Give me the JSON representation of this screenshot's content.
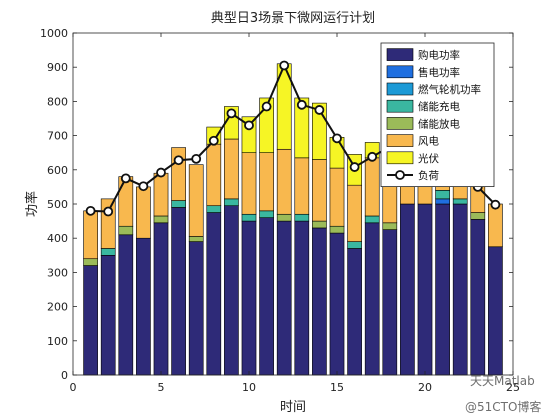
{
  "chart_data": {
    "type": "bar",
    "stacked": true,
    "title": "典型日3场景下微网运行计划",
    "xlabel": "时间",
    "ylabel": "功率",
    "xlim": [
      0,
      25
    ],
    "ylim": [
      0,
      1000
    ],
    "xticks": [
      0,
      5,
      10,
      15,
      20,
      25
    ],
    "yticks": [
      0,
      100,
      200,
      300,
      400,
      500,
      600,
      700,
      800,
      900,
      1000
    ],
    "grid": false,
    "legend_position": "top-right",
    "x": [
      1,
      2,
      3,
      4,
      5,
      6,
      7,
      8,
      9,
      10,
      11,
      12,
      13,
      14,
      15,
      16,
      17,
      18,
      19,
      20,
      21,
      22,
      23,
      24
    ],
    "series": [
      {
        "name": "购电功率",
        "color": "#2e2a78",
        "values": [
          320,
          350,
          410,
          400,
          445,
          490,
          390,
          475,
          495,
          450,
          460,
          450,
          450,
          430,
          415,
          370,
          445,
          425,
          500,
          500,
          500,
          500,
          455,
          375
        ]
      },
      {
        "name": "售电功率",
        "color": "#1f6fe0",
        "values": [
          0,
          0,
          0,
          0,
          0,
          0,
          0,
          0,
          0,
          0,
          0,
          0,
          0,
          0,
          0,
          0,
          0,
          0,
          0,
          0,
          15,
          0,
          0,
          0
        ]
      },
      {
        "name": "燃气轮机功率",
        "color": "#1c9ad6",
        "values": [
          0,
          0,
          0,
          0,
          0,
          0,
          0,
          0,
          0,
          0,
          0,
          0,
          0,
          0,
          0,
          0,
          0,
          0,
          0,
          0,
          0,
          0,
          0,
          0
        ]
      },
      {
        "name": "储能充电",
        "color": "#3ab7a0",
        "values": [
          0,
          20,
          0,
          0,
          0,
          20,
          0,
          20,
          20,
          20,
          20,
          0,
          20,
          0,
          0,
          20,
          20,
          0,
          0,
          0,
          25,
          15,
          0,
          0
        ]
      },
      {
        "name": "储能放电",
        "color": "#9bbb59",
        "values": [
          20,
          0,
          25,
          0,
          20,
          0,
          15,
          0,
          0,
          0,
          0,
          20,
          0,
          20,
          20,
          0,
          0,
          20,
          0,
          0,
          0,
          0,
          20,
          0
        ]
      },
      {
        "name": "风电",
        "color": "#f8b84e",
        "values": [
          140,
          145,
          145,
          150,
          125,
          155,
          210,
          180,
          175,
          180,
          170,
          190,
          165,
          180,
          170,
          165,
          170,
          180,
          180,
          175,
          115,
          150,
          135,
          125
        ]
      },
      {
        "name": "光伏",
        "color": "#f6f525",
        "values": [
          0,
          0,
          0,
          0,
          0,
          0,
          0,
          50,
          95,
          105,
          160,
          250,
          175,
          165,
          90,
          90,
          45,
          60,
          0,
          0,
          0,
          0,
          0,
          0
        ]
      }
    ],
    "line": {
      "name": "负荷",
      "color": "#111111",
      "values": [
        480,
        478,
        575,
        552,
        592,
        628,
        632,
        685,
        765,
        730,
        785,
        905,
        790,
        775,
        692,
        608,
        638,
        667,
        653,
        663,
        618,
        565,
        550,
        498
      ]
    }
  },
  "watermark": {
    "text1": "天天Matlab",
    "text2": "@51CTO博客"
  }
}
